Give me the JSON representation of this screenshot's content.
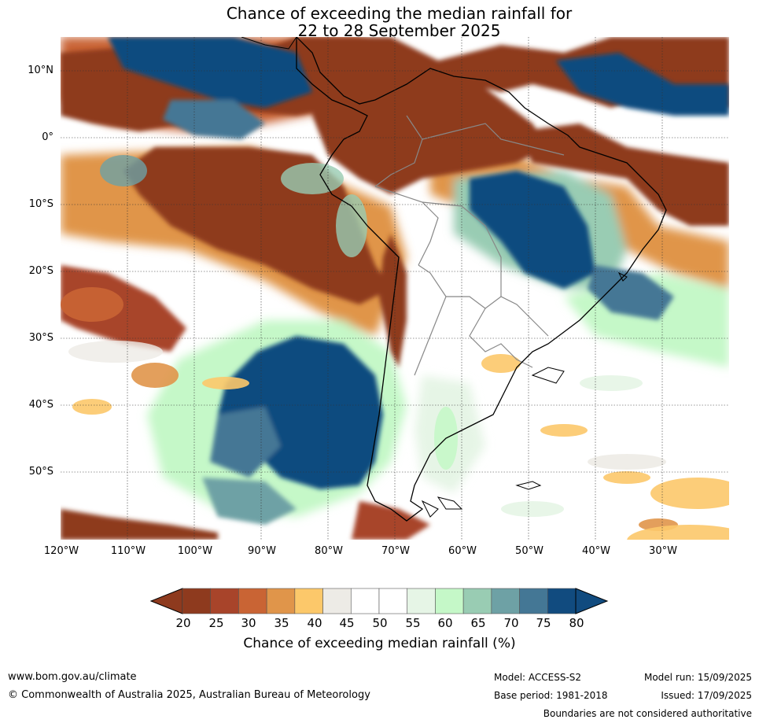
{
  "title_line1": "Chance of exceeding the median rainfall for",
  "title_line2": "22 to 28 September 2025",
  "map": {
    "lon_range": [
      -120,
      -20
    ],
    "lat_range": [
      -60,
      15
    ],
    "lat_ticks": [
      {
        "value": 10,
        "label": "10°N"
      },
      {
        "value": 0,
        "label": "0°"
      },
      {
        "value": -10,
        "label": "10°S"
      },
      {
        "value": -20,
        "label": "20°S"
      },
      {
        "value": -30,
        "label": "30°S"
      },
      {
        "value": -40,
        "label": "40°S"
      },
      {
        "value": -50,
        "label": "50°S"
      }
    ],
    "lon_ticks": [
      {
        "value": -120,
        "label": "120°W"
      },
      {
        "value": -110,
        "label": "110°W"
      },
      {
        "value": -100,
        "label": "100°W"
      },
      {
        "value": -90,
        "label": "90°W"
      },
      {
        "value": -80,
        "label": "80°W"
      },
      {
        "value": -70,
        "label": "70°W"
      },
      {
        "value": -60,
        "label": "60°W"
      },
      {
        "value": -50,
        "label": "50°W"
      },
      {
        "value": -40,
        "label": "40°W"
      },
      {
        "value": -30,
        "label": "30°W"
      }
    ]
  },
  "colorbar": {
    "label": "Chance of exceeding median rainfall (%)",
    "ticks": [
      "20",
      "25",
      "30",
      "35",
      "40",
      "45",
      "50",
      "55",
      "60",
      "65",
      "70",
      "75",
      "80"
    ],
    "colors": [
      "#8e3a1e",
      "#a8442a",
      "#c96434",
      "#e0954a",
      "#fcc86a",
      "#edebe6",
      "#ffffff",
      "#ffffff",
      "#e6f5e6",
      "#c5f8c8",
      "#99ccb3",
      "#6ea1a5",
      "#447795",
      "#114b7f"
    ],
    "under_color": "#8e3a1e",
    "over_color": "#114b7f"
  },
  "footer": {
    "website": "www.bom.gov.au/climate",
    "copyright": "© Commonwealth of Australia 2025, Australian Bureau of Meteorology",
    "model": "Model: ACCESS-S2",
    "base_period": "Base period: 1981-2018",
    "model_run": "Model run: 15/09/2025",
    "issued": "Issued: 17/09/2025",
    "disclaimer": "Boundaries are not considered authoritative"
  }
}
